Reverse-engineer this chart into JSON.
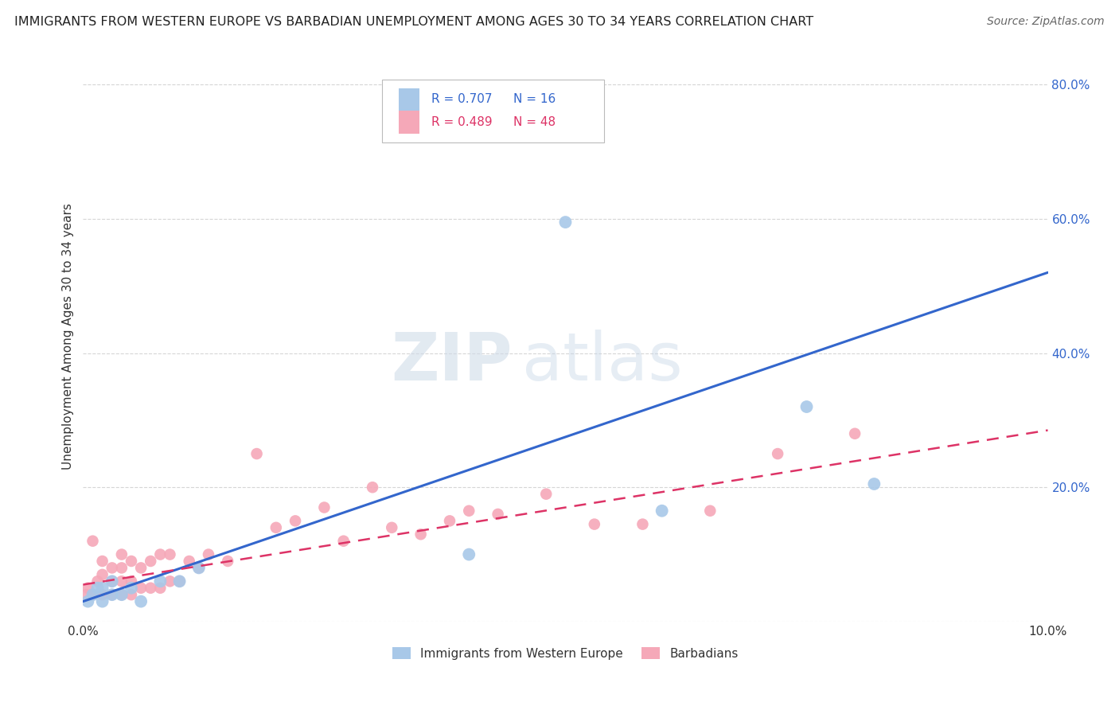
{
  "title": "IMMIGRANTS FROM WESTERN EUROPE VS BARBADIAN UNEMPLOYMENT AMONG AGES 30 TO 34 YEARS CORRELATION CHART",
  "source": "Source: ZipAtlas.com",
  "ylabel": "Unemployment Among Ages 30 to 34 years",
  "xlim": [
    0.0,
    0.1
  ],
  "ylim": [
    0.0,
    0.85
  ],
  "x_ticks": [
    0.0,
    0.02,
    0.04,
    0.06,
    0.08,
    0.1
  ],
  "y_ticks": [
    0.0,
    0.2,
    0.4,
    0.6,
    0.8
  ],
  "blue_scatter_x": [
    0.0005,
    0.001,
    0.0015,
    0.002,
    0.002,
    0.003,
    0.003,
    0.004,
    0.005,
    0.006,
    0.008,
    0.01,
    0.012,
    0.04,
    0.05,
    0.06,
    0.075,
    0.082
  ],
  "blue_scatter_y": [
    0.03,
    0.04,
    0.05,
    0.03,
    0.05,
    0.04,
    0.06,
    0.04,
    0.05,
    0.03,
    0.06,
    0.06,
    0.08,
    0.1,
    0.595,
    0.165,
    0.32,
    0.205
  ],
  "pink_scatter_x": [
    0.0003,
    0.0005,
    0.001,
    0.001,
    0.0015,
    0.002,
    0.002,
    0.002,
    0.003,
    0.003,
    0.003,
    0.004,
    0.004,
    0.004,
    0.004,
    0.005,
    0.005,
    0.005,
    0.006,
    0.006,
    0.007,
    0.007,
    0.008,
    0.008,
    0.009,
    0.009,
    0.01,
    0.011,
    0.012,
    0.013,
    0.015,
    0.018,
    0.02,
    0.022,
    0.025,
    0.027,
    0.03,
    0.032,
    0.035,
    0.038,
    0.04,
    0.043,
    0.048,
    0.053,
    0.058,
    0.065,
    0.072,
    0.08
  ],
  "pink_scatter_y": [
    0.04,
    0.05,
    0.04,
    0.12,
    0.06,
    0.04,
    0.07,
    0.09,
    0.04,
    0.06,
    0.08,
    0.04,
    0.06,
    0.08,
    0.1,
    0.04,
    0.06,
    0.09,
    0.05,
    0.08,
    0.05,
    0.09,
    0.05,
    0.1,
    0.06,
    0.1,
    0.06,
    0.09,
    0.08,
    0.1,
    0.09,
    0.25,
    0.14,
    0.15,
    0.17,
    0.12,
    0.2,
    0.14,
    0.13,
    0.15,
    0.165,
    0.16,
    0.19,
    0.145,
    0.145,
    0.165,
    0.25,
    0.28
  ],
  "blue_line_x": [
    0.0,
    0.1
  ],
  "blue_line_y": [
    0.03,
    0.52
  ],
  "pink_line_x": [
    0.0,
    0.1
  ],
  "pink_line_y": [
    0.055,
    0.285
  ],
  "blue_color": "#a8c8e8",
  "pink_color": "#f5a8b8",
  "blue_line_color": "#3366cc",
  "pink_line_color": "#dd3366",
  "legend_label_blue": "Immigrants from Western Europe",
  "legend_label_pink": "Barbadians",
  "watermark_zip": "ZIP",
  "watermark_atlas": "atlas",
  "background_color": "#ffffff",
  "grid_color": "#cccccc"
}
